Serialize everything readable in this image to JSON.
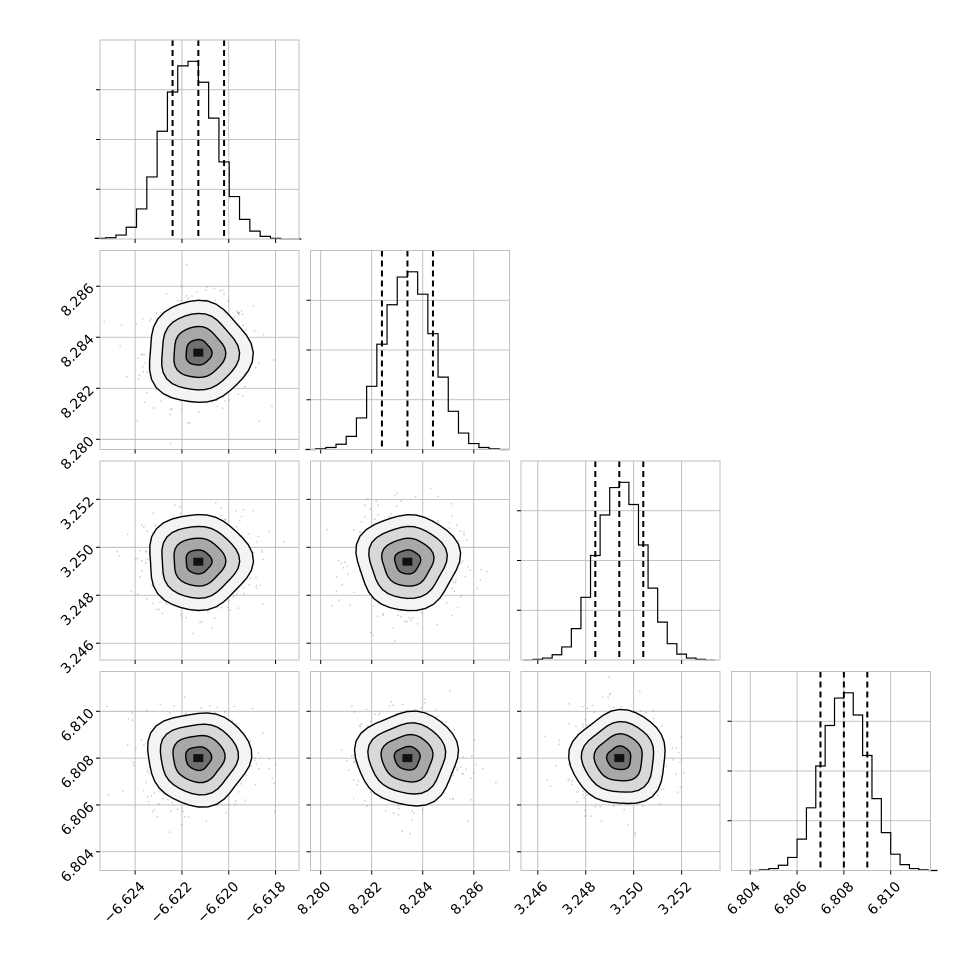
{
  "chart_data": {
    "type": "scatter",
    "subtype": "corner-plot",
    "grid": true,
    "parameters": [
      {
        "range": [
          -6.6255,
          -6.617
        ],
        "ticks": [
          -6.624,
          -6.622,
          -6.62,
          -6.618
        ],
        "tick_labels": [
          "−6.624",
          "−6.622",
          "−6.620",
          "−6.618"
        ],
        "mean": -6.6213,
        "sigma": 0.0011,
        "quantiles": [
          -6.6224,
          -6.6213,
          -6.6202
        ]
      },
      {
        "range": [
          8.2796,
          8.2874
        ],
        "ticks": [
          8.28,
          8.282,
          8.284,
          8.286
        ],
        "tick_labels": [
          "8.280",
          "8.282",
          "8.284",
          "8.286"
        ],
        "mean": 8.2834,
        "sigma": 0.001,
        "quantiles": [
          8.2824,
          8.2834,
          8.2844
        ]
      },
      {
        "range": [
          3.2453,
          3.2536
        ],
        "ticks": [
          3.246,
          3.248,
          3.25,
          3.252
        ],
        "tick_labels": [
          "3.246",
          "3.248",
          "3.250",
          "3.252"
        ],
        "mean": 3.2494,
        "sigma": 0.001,
        "quantiles": [
          3.2484,
          3.2494,
          3.2504
        ]
      },
      {
        "range": [
          6.8032,
          6.8117
        ],
        "ticks": [
          6.804,
          6.806,
          6.808,
          6.81
        ],
        "tick_labels": [
          "6.804",
          "6.806",
          "6.808",
          "6.810"
        ],
        "mean": 6.808,
        "sigma": 0.001,
        "quantiles": [
          6.807,
          6.808,
          6.809
        ]
      }
    ],
    "histograms": [
      {
        "param": 0,
        "bins": 20,
        "counts": [
          1,
          2,
          6,
          18,
          46,
          95,
          165,
          225,
          265,
          272,
          240,
          185,
          118,
          65,
          30,
          12,
          4,
          1,
          0,
          0
        ]
      },
      {
        "param": 1,
        "bins": 20,
        "counts": [
          0,
          1,
          3,
          8,
          20,
          48,
          96,
          160,
          220,
          262,
          270,
          236,
          176,
          110,
          58,
          25,
          9,
          3,
          1,
          0
        ]
      },
      {
        "param": 2,
        "bins": 20,
        "counts": [
          0,
          1,
          3,
          8,
          20,
          48,
          96,
          160,
          222,
          264,
          272,
          238,
          176,
          110,
          58,
          25,
          9,
          3,
          1,
          0
        ]
      },
      {
        "param": 3,
        "bins": 20,
        "counts": [
          0,
          1,
          3,
          8,
          20,
          48,
          96,
          160,
          222,
          264,
          272,
          238,
          176,
          110,
          58,
          25,
          9,
          3,
          1,
          0
        ]
      }
    ],
    "density_levels_sigma": [
      0.5,
      1.0,
      1.5,
      2.0
    ],
    "scatter_points_per_panel": 500
  }
}
